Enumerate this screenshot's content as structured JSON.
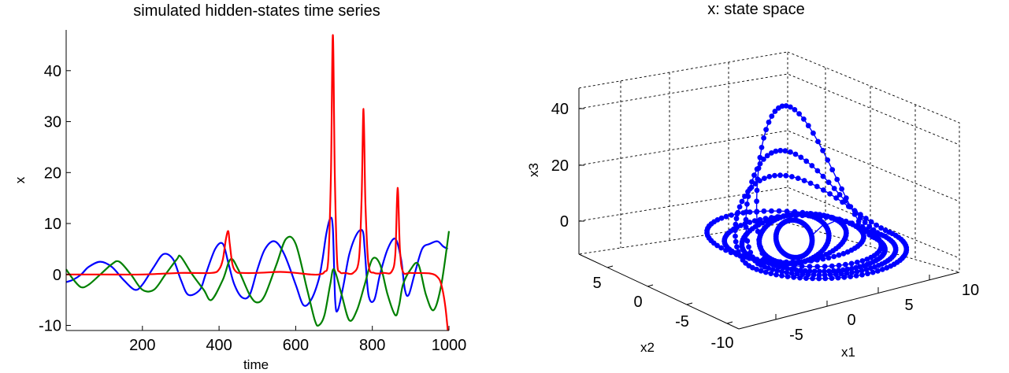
{
  "chart_data": [
    {
      "type": "line",
      "title": "simulated hidden-states time series",
      "xlabel": "time",
      "ylabel": "x",
      "xlim": [
        1,
        1000
      ],
      "ylim": [
        -11,
        48
      ],
      "xticks": [
        200,
        400,
        600,
        800,
        1000
      ],
      "yticks": [
        -10,
        0,
        10,
        20,
        30,
        40
      ],
      "grid": false,
      "series": [
        {
          "color": "#0000ff",
          "t": [
            1,
            20,
            40,
            60,
            90,
            120,
            150,
            180,
            200,
            230,
            255,
            280,
            300,
            320,
            350,
            365,
            390,
            410,
            425,
            440,
            460,
            480,
            500,
            520,
            545,
            570,
            600,
            620,
            640,
            660,
            670,
            680,
            690,
            697,
            703,
            710,
            725,
            740,
            760,
            775,
            780,
            790,
            805,
            820,
            840,
            860,
            875,
            885,
            895,
            910,
            930,
            950,
            970,
            985,
            997
          ],
          "values": [
            -1.5,
            -1,
            0,
            1.5,
            2.5,
            1.5,
            -1,
            -3,
            -2,
            1.5,
            4,
            3,
            -1,
            -4,
            -3,
            0,
            5,
            6,
            2,
            -2,
            -4.5,
            -4,
            1,
            5,
            6.5,
            4,
            -2,
            -6,
            -5,
            -1,
            3,
            8,
            11,
            9,
            -5,
            -7,
            -2,
            4,
            8,
            8.5,
            5,
            -4,
            -5,
            0,
            5,
            7,
            3,
            -3,
            -4,
            0,
            5,
            6,
            6.5,
            5.5,
            5
          ]
        },
        {
          "color": "#008000",
          "t": [
            1,
            20,
            40,
            60,
            90,
            120,
            140,
            170,
            200,
            230,
            260,
            290,
            300,
            330,
            360,
            380,
            410,
            430,
            450,
            480,
            500,
            520,
            550,
            575,
            600,
            630,
            650,
            660,
            675,
            690,
            700,
            720,
            740,
            760,
            780,
            800,
            820,
            840,
            860,
            870,
            880,
            900,
            920,
            940,
            960,
            980,
            1000
          ],
          "values": [
            1,
            -1,
            -2.5,
            -2,
            0,
            2,
            2.5,
            0,
            -3,
            -3,
            0,
            3,
            3.5,
            0,
            -3,
            -5,
            -1,
            3,
            1,
            -4,
            -5.5,
            -4,
            2,
            7,
            6,
            -3,
            -9,
            -10,
            -8,
            -2,
            1,
            -4,
            -9,
            -7,
            -2,
            3,
            2,
            -4,
            -8,
            -6,
            -2,
            1,
            2,
            -4,
            -7,
            -2,
            8.5
          ]
        },
        {
          "color": "#ff0000",
          "t": [
            1,
            100,
            200,
            300,
            380,
            400,
            410,
            418,
            424,
            428,
            435,
            445,
            460,
            500,
            560,
            600,
            640,
            660,
            675,
            685,
            692,
            697,
            702,
            708,
            715,
            730,
            750,
            765,
            772,
            777,
            782,
            790,
            805,
            830,
            850,
            860,
            866,
            872,
            880,
            900,
            950,
            970,
            980,
            990,
            997
          ],
          "values": [
            0,
            0,
            0,
            0.3,
            0.3,
            1,
            3,
            7,
            8.5,
            6,
            2,
            0.5,
            0.3,
            0.3,
            0.5,
            0.3,
            0,
            0,
            0.5,
            3,
            20,
            47,
            20,
            3,
            0.5,
            0.3,
            0.3,
            3,
            15,
            32.5,
            14,
            2,
            0.3,
            0.3,
            0.5,
            4,
            17,
            5,
            0.5,
            0.3,
            0.2,
            -0.5,
            -2,
            -6,
            -11
          ]
        }
      ]
    },
    {
      "type": "scatter",
      "title": "x: state space",
      "xlabel": "x1",
      "ylabel": "x2",
      "zlabel": "x3",
      "xlim": [
        -10,
        10
      ],
      "ylim": [
        -10,
        10
      ],
      "zlim": [
        -15,
        45
      ],
      "xticks": [
        -5,
        0,
        5,
        10
      ],
      "yticks": [
        -10,
        -5,
        0,
        5
      ],
      "zticks": [
        0,
        20,
        40
      ],
      "grid": true,
      "color": "#0000ff",
      "description": "3-D trajectory drawn as connected dots (x1, x2, x3); loops orbit near the origin and excursions rise to x3 ≈ 45"
    }
  ]
}
